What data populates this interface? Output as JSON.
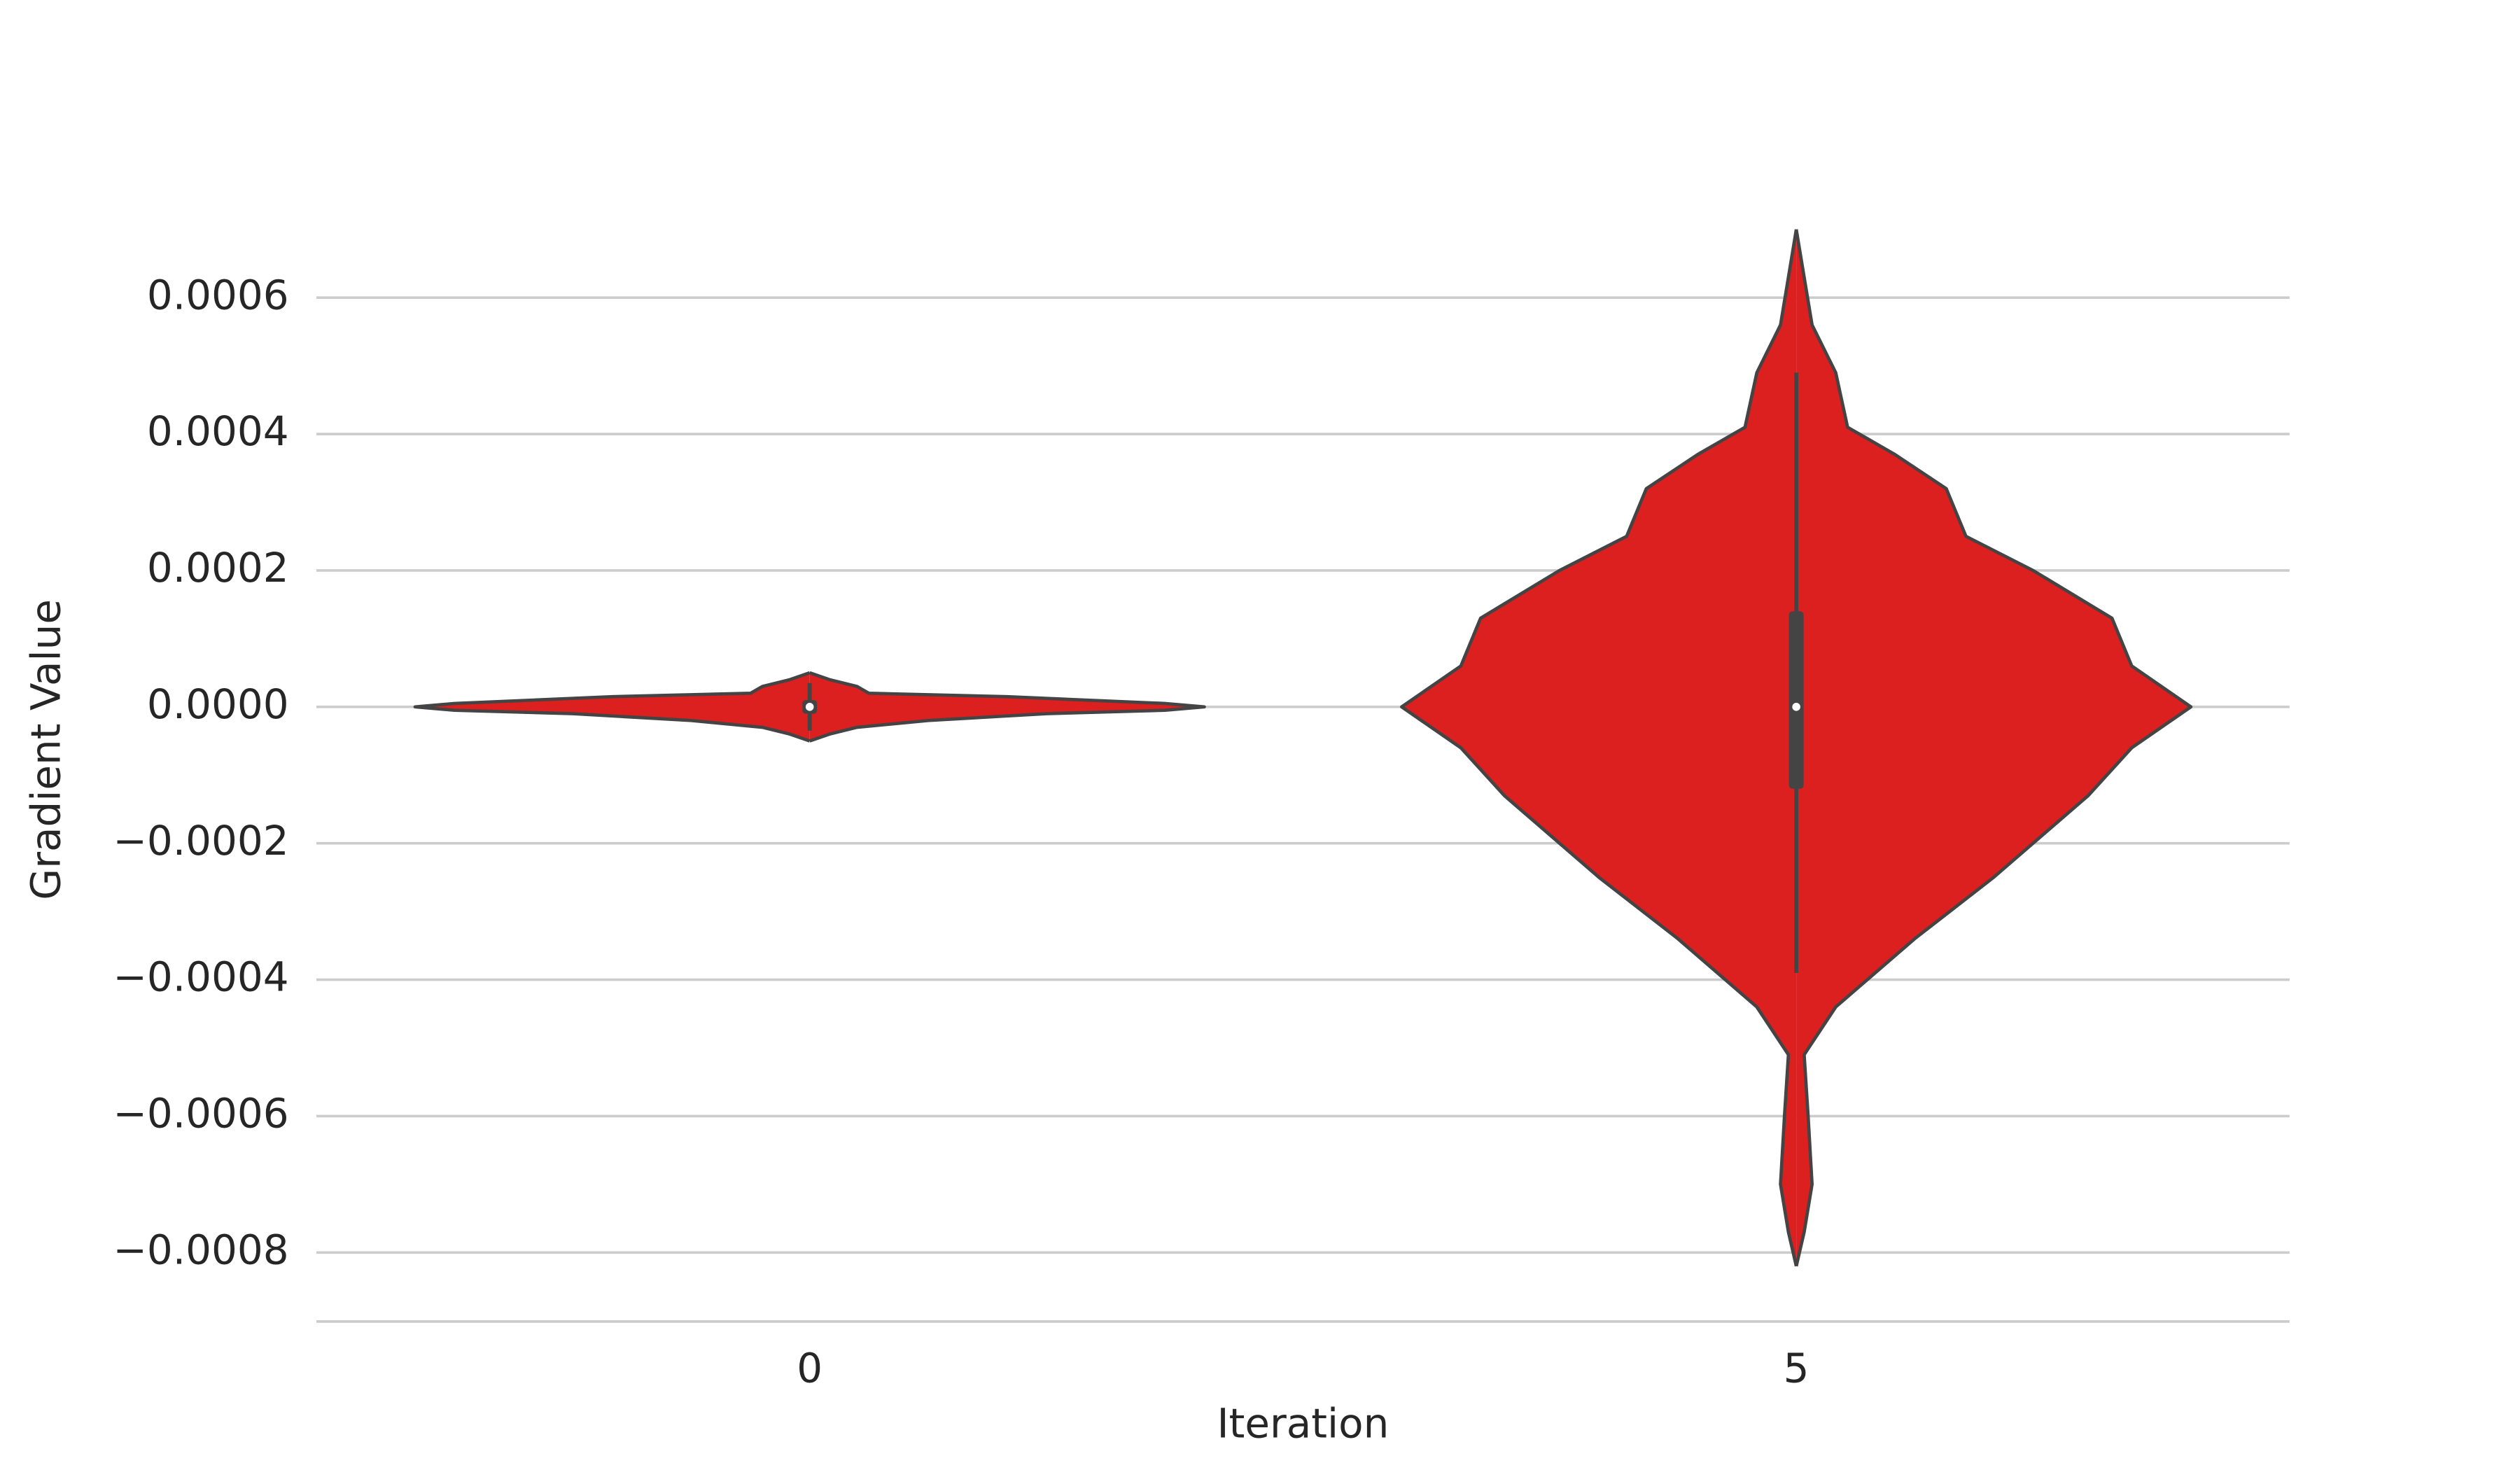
{
  "chart_data": {
    "type": "violin",
    "x_label": "Iteration",
    "y_label": "Gradient Value",
    "categories": [
      "0",
      "5"
    ],
    "color": "#dc1f1f",
    "edge_color": "#444444",
    "ylim": [
      -0.0009,
      0.00072
    ],
    "yticks": [
      0.0006,
      0.0004,
      0.0002,
      {
        "value": 0,
        "label": "0.0000"
      },
      {
        "value": -0.0002,
        "label": "−0.0002"
      },
      {
        "value": -0.0004,
        "label": "−0.0004"
      },
      {
        "value": -0.0006,
        "label": "−0.0006"
      },
      {
        "value": -0.0008,
        "label": "−0.0008"
      }
    ],
    "grid": true,
    "violins": [
      {
        "density": {
          "y": [
            5e-05,
            4e-05,
            3e-05,
            2e-05,
            1.5e-05,
            5e-06,
            0,
            -5e-06,
            -1e-05,
            -2e-05,
            -3e-05,
            -4e-05,
            -5e-05
          ],
          "width": [
            0,
            0.05,
            0.12,
            0.15,
            0.5,
            0.9,
            1,
            0.9,
            0.6,
            0.3,
            0.12,
            0.05,
            0
          ]
        },
        "whisker_low": -3.5e-05,
        "q1": -1e-05,
        "median": 0,
        "q3": 1e-05,
        "whisker_high": 3.5e-05
      },
      {
        "density": {
          "y": [
            0.0007,
            0.00063,
            0.00056,
            0.00049,
            0.00041,
            0.00037,
            0.00032,
            0.00025,
            0.0002,
            0.00013,
            6e-05,
            0,
            -6e-05,
            -0.00013,
            -0.00025,
            -0.00034,
            -0.00044,
            -0.00051,
            -0.0006,
            -0.0007,
            -0.00077,
            -0.00082
          ],
          "width": [
            0,
            0.02,
            0.04,
            0.1,
            0.13,
            0.25,
            0.38,
            0.43,
            0.6,
            0.8,
            0.85,
            1,
            0.85,
            0.74,
            0.5,
            0.3,
            0.1,
            0.02,
            0.03,
            0.04,
            0.02,
            0
          ]
        },
        "whisker_low": -0.00039,
        "q1": -0.00012,
        "median": 0,
        "q3": 0.00014,
        "whisker_high": 0.00049
      }
    ]
  }
}
